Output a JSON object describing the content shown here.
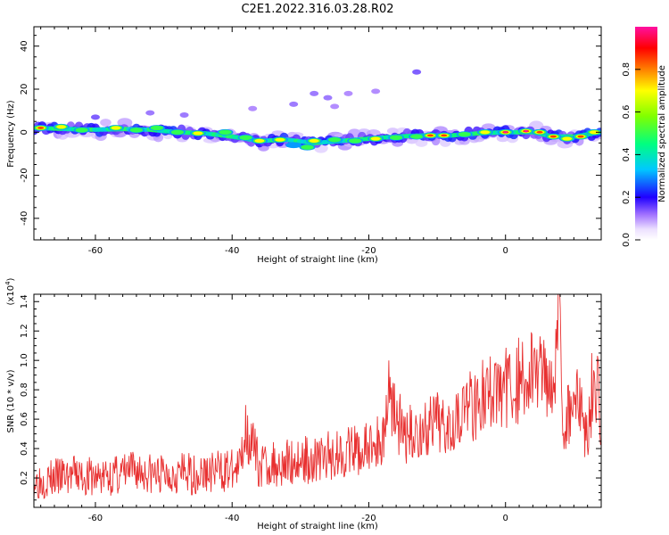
{
  "title": "C2E1.2022.316.03.28.R02",
  "colors": {
    "axis": "#000000",
    "snr_line": "#e83030",
    "spectral_core": "#e81010",
    "spectral_outer": "#7a00ff"
  },
  "chart_data": [
    {
      "type": "heatmap",
      "xlabel": "Height of straight line (km)",
      "ylabel": "Frequency (Hz)",
      "xlim": [
        -69,
        14
      ],
      "ylim": [
        -50,
        49
      ],
      "xticks": [
        -60,
        -40,
        -20,
        0
      ],
      "xtick_labels": [
        "-60",
        "-40",
        "-20",
        "0"
      ],
      "yticks": [
        -40,
        -20,
        0,
        20,
        40
      ],
      "ytick_labels": [
        "-40",
        "-20",
        "0",
        "20",
        "40"
      ],
      "colorbar": {
        "label": "Normalized spectral amplitude",
        "range": [
          0,
          1
        ],
        "ticks": [
          0,
          0.2,
          0.4,
          0.6,
          0.8
        ],
        "tick_labels": [
          "0.0",
          "0.2",
          "0.4",
          "0.6",
          "0.8"
        ]
      },
      "ridge": [
        {
          "x": -69,
          "y": 2
        },
        {
          "x": -64,
          "y": 1.5
        },
        {
          "x": -60,
          "y": 1.2
        },
        {
          "x": -56,
          "y": 1.5
        },
        {
          "x": -52,
          "y": 1.2
        },
        {
          "x": -48,
          "y": 0
        },
        {
          "x": -44,
          "y": -0.5
        },
        {
          "x": -40,
          "y": -2
        },
        {
          "x": -36,
          "y": -4
        },
        {
          "x": -32,
          "y": -3.5
        },
        {
          "x": -28,
          "y": -5
        },
        {
          "x": -24,
          "y": -4
        },
        {
          "x": -20,
          "y": -3
        },
        {
          "x": -16,
          "y": -2
        },
        {
          "x": -12,
          "y": -1.5
        },
        {
          "x": -8,
          "y": -1.5
        },
        {
          "x": -4,
          "y": -0.5
        },
        {
          "x": 0,
          "y": 0
        },
        {
          "x": 4,
          "y": 0
        },
        {
          "x": 7,
          "y": -2
        },
        {
          "x": 10,
          "y": -2
        },
        {
          "x": 14,
          "y": 0
        }
      ],
      "blobs": [
        {
          "x": -68,
          "y": 2,
          "amp": 0.95
        },
        {
          "x": -65,
          "y": 2.5,
          "amp": 0.7
        },
        {
          "x": -62,
          "y": 1,
          "amp": 0.6
        },
        {
          "x": -58,
          "y": 6,
          "amp": 0.25
        },
        {
          "x": -57,
          "y": 2,
          "amp": 0.7
        },
        {
          "x": -54,
          "y": 1,
          "amp": 0.55
        },
        {
          "x": -51,
          "y": 2,
          "amp": 0.65
        },
        {
          "x": -48,
          "y": 0,
          "amp": 0.5
        },
        {
          "x": -45,
          "y": -0.5,
          "amp": 0.75
        },
        {
          "x": -42,
          "y": 11,
          "amp": 0.2
        },
        {
          "x": -41,
          "y": 0,
          "amp": 0.6
        },
        {
          "x": -38,
          "y": -2.5,
          "amp": 0.55
        },
        {
          "x": -36,
          "y": -4,
          "amp": 0.8
        },
        {
          "x": -33,
          "y": -3.5,
          "amp": 0.7
        },
        {
          "x": -31,
          "y": -6,
          "amp": 0.35
        },
        {
          "x": -29,
          "y": -7,
          "amp": 0.5
        },
        {
          "x": -28,
          "y": -4,
          "amp": 0.75
        },
        {
          "x": -25,
          "y": -3.5,
          "amp": 0.6
        },
        {
          "x": -22,
          "y": -4,
          "amp": 0.55
        },
        {
          "x": -19,
          "y": -3,
          "amp": 0.7
        },
        {
          "x": -16,
          "y": -2.5,
          "amp": 0.6
        },
        {
          "x": -13,
          "y": -2,
          "amp": 0.55
        },
        {
          "x": -11,
          "y": -1.5,
          "amp": 0.9
        },
        {
          "x": -9,
          "y": -1.5,
          "amp": 0.85
        },
        {
          "x": -6,
          "y": -1,
          "amp": 0.6
        },
        {
          "x": -3,
          "y": 0,
          "amp": 0.8
        },
        {
          "x": 0,
          "y": 0,
          "amp": 1.0
        },
        {
          "x": 3,
          "y": 0.5,
          "amp": 1.0
        },
        {
          "x": 5,
          "y": 0,
          "amp": 0.85
        },
        {
          "x": 7,
          "y": -2,
          "amp": 0.95
        },
        {
          "x": 9,
          "y": -3,
          "amp": 0.75
        },
        {
          "x": 11,
          "y": -2,
          "amp": 0.95
        },
        {
          "x": 13,
          "y": 0,
          "amp": 0.7
        }
      ],
      "scatter_faint": [
        {
          "x": -28,
          "y": 18,
          "amp": 0.12
        },
        {
          "x": -26,
          "y": 16,
          "amp": 0.12
        },
        {
          "x": -31,
          "y": 13,
          "amp": 0.12
        },
        {
          "x": -23,
          "y": 18,
          "amp": 0.1
        },
        {
          "x": -19,
          "y": 19,
          "amp": 0.1
        },
        {
          "x": -13,
          "y": 28,
          "amp": 0.15
        },
        {
          "x": -47,
          "y": 8,
          "amp": 0.12
        },
        {
          "x": -52,
          "y": 9,
          "amp": 0.12
        },
        {
          "x": -37,
          "y": 11,
          "amp": 0.1
        },
        {
          "x": -60,
          "y": 7,
          "amp": 0.15
        },
        {
          "x": -25,
          "y": 12,
          "amp": 0.1
        }
      ]
    },
    {
      "type": "line",
      "xlabel": "Height of straight line (km)",
      "ylabel": "SNR (10 * v/v)",
      "y_multiplier": "(x10",
      "y_multiplier_exp": "4",
      "y_multiplier_close": ")",
      "xlim": [
        -69,
        14
      ],
      "ylim": [
        0,
        1.45
      ],
      "xticks": [
        -60,
        -40,
        -20,
        0
      ],
      "xtick_labels": [
        "-60",
        "-40",
        "-20",
        "0"
      ],
      "yticks": [
        0.2,
        0.4,
        0.6,
        0.8,
        1.0,
        1.2,
        1.4
      ],
      "ytick_labels": [
        "0.2",
        "0.4",
        "0.6",
        "0.8",
        "1.0",
        "1.2",
        "1.4"
      ],
      "series": [
        {
          "x": [
            -69,
            -66,
            -63,
            -60,
            -57,
            -54,
            -51,
            -48,
            -45,
            -42,
            -39,
            -38,
            -36,
            -33,
            -30,
            -27,
            -24,
            -21,
            -18,
            -17,
            -15,
            -12,
            -9,
            -6,
            -3,
            0,
            3,
            5,
            7,
            8,
            8.5,
            9,
            10,
            11,
            12,
            13,
            14
          ],
          "values": [
            0.18,
            0.2,
            0.22,
            0.2,
            0.22,
            0.25,
            0.22,
            0.24,
            0.22,
            0.25,
            0.25,
            0.55,
            0.28,
            0.3,
            0.32,
            0.33,
            0.38,
            0.38,
            0.45,
            0.82,
            0.48,
            0.52,
            0.58,
            0.68,
            0.76,
            0.82,
            0.88,
            0.95,
            0.9,
            1.4,
            0.5,
            0.6,
            0.8,
            0.65,
            0.5,
            0.95,
            0.6
          ]
        }
      ]
    }
  ]
}
